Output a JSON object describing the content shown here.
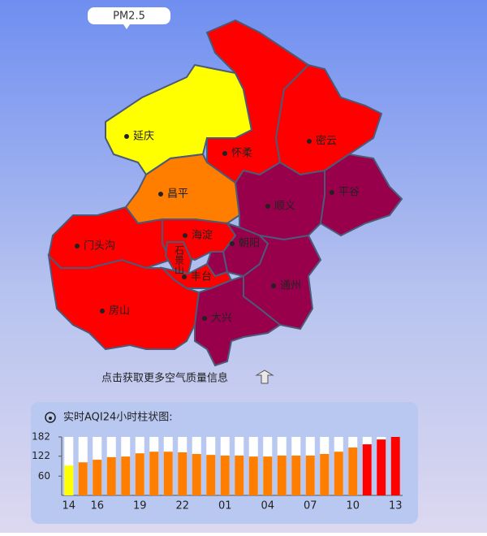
{
  "tooltip": "PM2.5",
  "districts": [
    "延庆",
    "怀柔",
    "密云",
    "昌平",
    "顺义",
    "平谷",
    "门头沟",
    "海淀",
    "石景山",
    "朝阳",
    "丰台",
    "通州",
    "房山",
    "大兴"
  ],
  "link_text": "点击获取更多空气质量信息",
  "chart_data": {
    "type": "bar",
    "title": "实时AQI24小时柱状图:",
    "categories": [
      "14",
      null,
      "16",
      null,
      null,
      "19",
      null,
      null,
      "22",
      null,
      null,
      "01",
      null,
      null,
      "04",
      null,
      null,
      "07",
      null,
      null,
      "10",
      null,
      null,
      "13"
    ],
    "values": [
      93,
      103,
      111,
      119,
      121,
      131,
      136,
      136,
      134,
      129,
      126,
      124,
      124,
      121,
      121,
      124,
      124,
      124,
      129,
      136,
      149,
      159,
      174,
      182
    ],
    "colors": [
      "#ffff00",
      "#ff7e00",
      "#ff7e00",
      "#ff7e00",
      "#ff7e00",
      "#ff7e00",
      "#ff7e00",
      "#ff7e00",
      "#ff7e00",
      "#ff7e00",
      "#ff7e00",
      "#ff7e00",
      "#ff7e00",
      "#ff7e00",
      "#ff7e00",
      "#ff7e00",
      "#ff7e00",
      "#ff7e00",
      "#ff7e00",
      "#ff7e00",
      "#ff7e00",
      "#ff0000",
      "#ff0000",
      "#ff0000"
    ],
    "ylim": [
      0,
      182
    ],
    "yticks": [
      60,
      122,
      182
    ]
  }
}
